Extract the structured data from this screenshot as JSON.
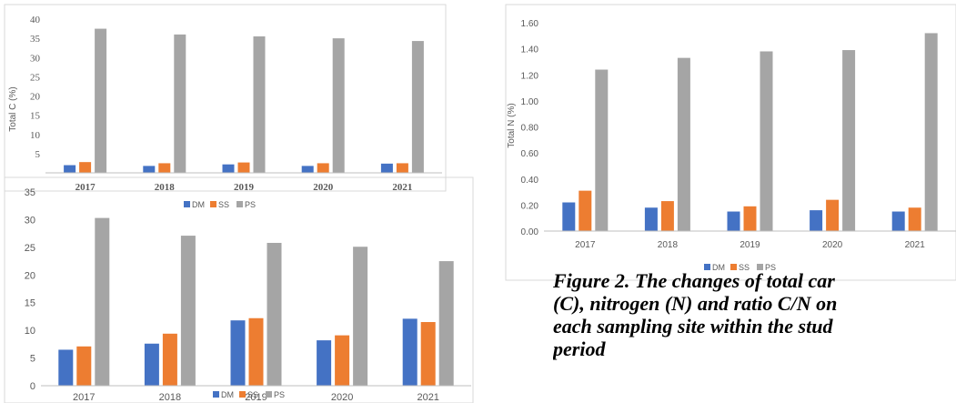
{
  "colors": {
    "DM": "#4472C4",
    "SS": "#ED7D31",
    "PS": "#A5A5A5"
  },
  "chart_data": [
    {
      "type": "bar",
      "categories": [
        "2017",
        "2018",
        "2019",
        "2020",
        "2021"
      ],
      "series": [
        {
          "name": "DM",
          "values": [
            2.0,
            1.8,
            2.2,
            1.8,
            2.4
          ]
        },
        {
          "name": "SS",
          "values": [
            2.8,
            2.5,
            2.7,
            2.5,
            2.5
          ]
        },
        {
          "name": "PS",
          "values": [
            37.5,
            36.0,
            35.5,
            35.0,
            34.3
          ]
        }
      ],
      "title": "",
      "xlabel": "",
      "ylabel": "Total C (%)",
      "ylim": [
        0,
        40
      ],
      "yticks": [
        "5",
        "10",
        "15",
        "20",
        "25",
        "30",
        "35",
        "40"
      ],
      "grid": false,
      "legend": "bottom"
    },
    {
      "type": "bar",
      "categories": [
        "2017",
        "2018",
        "2019",
        "2020",
        "2021"
      ],
      "series": [
        {
          "name": "DM",
          "values": [
            0.22,
            0.18,
            0.15,
            0.16,
            0.15
          ]
        },
        {
          "name": "SS",
          "values": [
            0.31,
            0.23,
            0.19,
            0.24,
            0.18
          ]
        },
        {
          "name": "PS",
          "values": [
            1.24,
            1.33,
            1.38,
            1.39,
            1.52
          ]
        }
      ],
      "title": "",
      "xlabel": "",
      "ylabel": "Total N (%)",
      "ylim": [
        0,
        1.6
      ],
      "yticks": [
        "0.00",
        "0.20",
        "0.40",
        "0.60",
        "0.80",
        "1.00",
        "1.20",
        "1.40",
        "1.60"
      ],
      "grid": false,
      "legend": "bottom"
    },
    {
      "type": "bar",
      "categories": [
        "2017",
        "2018",
        "2019",
        "2020",
        "2021"
      ],
      "series": [
        {
          "name": "DM",
          "values": [
            6.5,
            7.6,
            11.8,
            8.2,
            12.1
          ]
        },
        {
          "name": "SS",
          "values": [
            7.1,
            9.4,
            12.2,
            9.1,
            11.5
          ]
        },
        {
          "name": "PS",
          "values": [
            30.3,
            27.1,
            25.8,
            25.1,
            22.5
          ]
        }
      ],
      "title": "",
      "xlabel": "",
      "ylabel": "",
      "ylim": [
        0,
        35
      ],
      "yticks": [
        "0",
        "5",
        "10",
        "15",
        "20",
        "25",
        "30",
        "35"
      ],
      "grid": false,
      "legend": "bottom"
    }
  ],
  "caption_lines": [
    "Figure 2. The changes of total car",
    "(C), nitrogen (N) and ratio C/N on",
    "each sampling site within the stud",
    "period"
  ]
}
